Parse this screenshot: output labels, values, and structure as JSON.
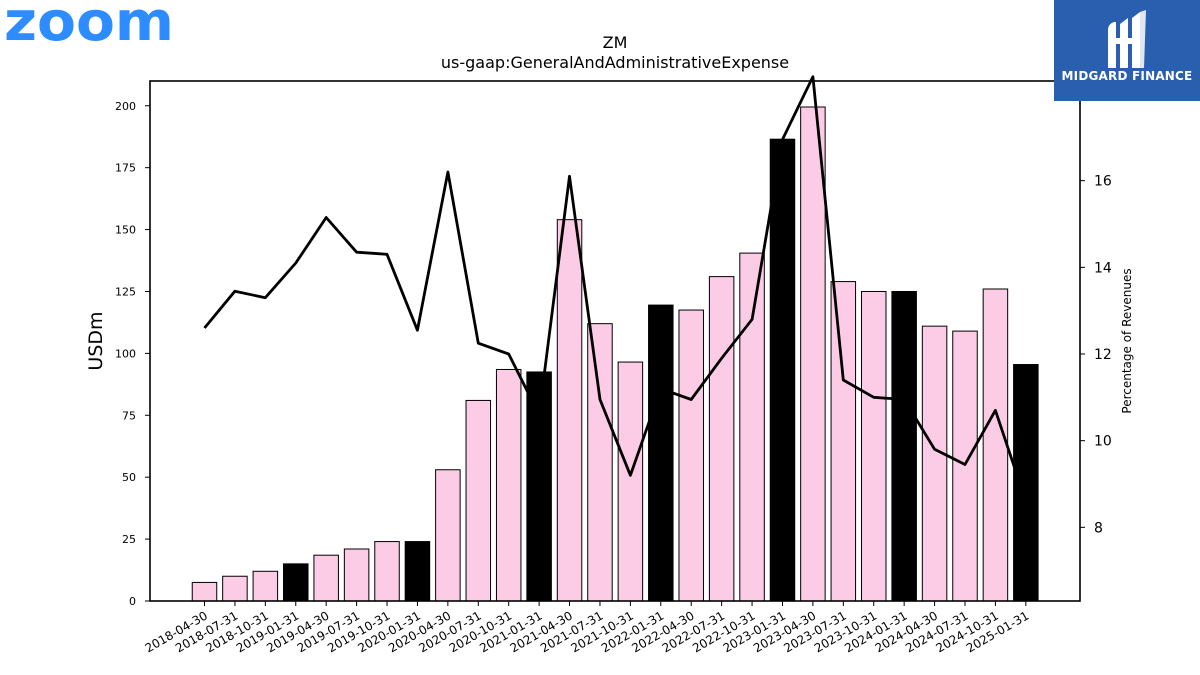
{
  "branding": {
    "company_logo_text": "zoom",
    "company_logo_color": "#2D8CFF",
    "publisher_name": "MIDGARD FINANCE",
    "publisher_bg_color": "#2a5fb0"
  },
  "chart_data": {
    "type": "bar",
    "title": "ZM",
    "subtitle": "us-gaap:GeneralAndAdministrativeExpense",
    "ylabel": "USDm",
    "y2label": "Percentage of Revenues",
    "ylim": [
      0,
      210
    ],
    "y2lim": [
      6.3,
      18.3
    ],
    "yticks": [
      0,
      25,
      50,
      75,
      100,
      125,
      150,
      175,
      200
    ],
    "y2ticks": [
      8,
      10,
      12,
      14,
      16,
      18
    ],
    "categories": [
      "2018-04-30",
      "2018-07-31",
      "2018-10-31",
      "2019-01-31",
      "2019-04-30",
      "2019-07-31",
      "2019-10-31",
      "2020-01-31",
      "2020-04-30",
      "2020-07-31",
      "2020-10-31",
      "2021-01-31",
      "2021-04-30",
      "2021-07-31",
      "2021-10-31",
      "2022-01-31",
      "2022-04-30",
      "2022-07-31",
      "2022-10-31",
      "2023-01-31",
      "2023-04-30",
      "2023-07-31",
      "2023-10-31",
      "2024-01-31",
      "2024-04-30",
      "2024-07-31",
      "2024-10-31",
      "2025-01-31"
    ],
    "series": [
      {
        "kind": "bar",
        "values": [
          7.5,
          10,
          12,
          15,
          18.5,
          21,
          24,
          24,
          53,
          81,
          93.5,
          92.5,
          154,
          112,
          96.5,
          119.5,
          117.5,
          131,
          140.5,
          186.5,
          199.5,
          129,
          125,
          125,
          111,
          109,
          126,
          95.5
        ],
        "fiscal_q4": [
          false,
          false,
          false,
          true,
          false,
          false,
          false,
          true,
          false,
          false,
          false,
          true,
          false,
          false,
          false,
          true,
          false,
          false,
          false,
          true,
          false,
          false,
          false,
          true,
          false,
          false,
          false,
          true
        ]
      },
      {
        "kind": "line",
        "axis": "right",
        "values": [
          12.6,
          13.45,
          13.3,
          14.1,
          15.15,
          14.35,
          14.3,
          12.55,
          16.2,
          12.25,
          12.0,
          10.6,
          16.1,
          10.95,
          9.2,
          11.2,
          10.95,
          11.9,
          12.8,
          16.95,
          18.4,
          11.4,
          11.0,
          10.95,
          9.8,
          9.45,
          10.7,
          8.6
        ]
      }
    ],
    "colors": {
      "bar": "#fccbe5",
      "bar_q4": "#000000",
      "line": "#000000"
    },
    "grid": false
  }
}
